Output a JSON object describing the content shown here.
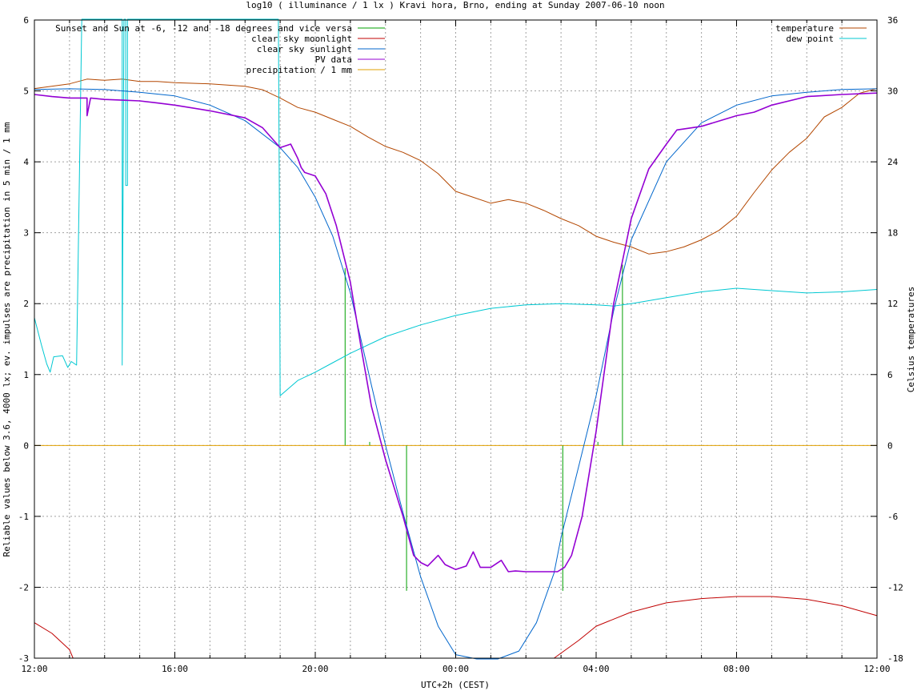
{
  "chart_data": {
    "type": "line",
    "title": "log10 ( illuminance / 1 lx ) Kravi hora, Brno, ending at Sunday 2007-06-10 noon",
    "xlabel": "UTC+2h (CEST)",
    "ylabel": "Reliable values below 3.6, 4000 lx; ev. impulses are precipitation in 5 min / 1 mm",
    "y2label": "Celsius temperatures",
    "xlim": [
      0,
      24
    ],
    "ylim": [
      -3,
      6
    ],
    "y2lim": [
      -18,
      36
    ],
    "x_tick_labels": [
      {
        "x": 0,
        "label": "12:00"
      },
      {
        "x": 4,
        "label": "16:00"
      },
      {
        "x": 8,
        "label": "20:00"
      },
      {
        "x": 12,
        "label": "00:00"
      },
      {
        "x": 16,
        "label": "04:00"
      },
      {
        "x": 20,
        "label": "08:00"
      },
      {
        "x": 24,
        "label": "12:00"
      }
    ],
    "y_ticks": [
      -3,
      -2,
      -1,
      0,
      1,
      2,
      3,
      4,
      5,
      6
    ],
    "y2_ticks": [
      -18,
      -12,
      -6,
      0,
      6,
      12,
      18,
      24,
      30,
      36
    ],
    "grid": true,
    "legend_left": [
      "Sunset and Sun at -6, -12 and -18 degrees and vice versa",
      "clear sky moonlight",
      "clear sky sunlight",
      "PV data",
      "precipitation / 1 mm"
    ],
    "legend_right": [
      "temperature",
      "dew point"
    ],
    "colors": {
      "sun_events": "#00a000",
      "moonlight": "#c00000",
      "sunlight": "#0066cc",
      "pv": "#9400d3",
      "precipitation": "#e0a000",
      "temperature": "#b34700",
      "dew_point": "#00c8d2"
    },
    "series": [
      {
        "name": "clear sky sunlight",
        "axis": "left",
        "x": [
          0,
          1,
          2,
          3,
          4,
          5,
          6,
          7,
          7.5,
          8,
          8.5,
          9,
          9.3,
          9.6,
          10,
          10.5,
          11,
          11.5,
          12,
          12.6,
          13.2,
          13.8,
          14.3,
          14.8,
          15,
          15.5,
          16,
          16.5,
          17,
          18,
          19,
          20,
          21,
          22,
          23,
          24
        ],
        "values": [
          5.02,
          5.03,
          5.02,
          4.98,
          4.93,
          4.8,
          4.58,
          4.2,
          3.92,
          3.5,
          2.95,
          2.15,
          1.5,
          0.85,
          0.0,
          -0.95,
          -1.85,
          -2.55,
          -2.95,
          -3.1,
          -3.1,
          -2.9,
          -2.5,
          -1.8,
          -1.3,
          -0.3,
          0.7,
          1.9,
          2.9,
          4.0,
          4.55,
          4.8,
          4.93,
          4.98,
          5.02,
          5.03
        ]
      },
      {
        "name": "PV data",
        "axis": "left",
        "x": [
          0,
          0.5,
          1,
          1.5,
          1.5,
          1.6,
          2,
          2.5,
          3,
          3.5,
          4,
          5,
          6,
          6.5,
          7,
          7.3,
          7.5,
          7.6,
          7.7,
          8,
          8.3,
          8.6,
          9,
          9.3,
          9.6,
          10,
          10.5,
          10.8,
          11,
          11.2,
          11.5,
          11.7,
          12,
          12.3,
          12.5,
          12.7,
          13,
          13.3,
          13.5,
          13.7,
          14,
          14.5,
          14.9,
          15.1,
          15.3,
          15.6,
          16,
          16.5,
          17,
          17.5,
          18,
          18.3,
          19,
          20,
          20.5,
          21,
          22,
          23,
          24
        ],
        "values": [
          4.95,
          4.92,
          4.9,
          4.9,
          4.65,
          4.9,
          4.88,
          4.87,
          4.86,
          4.83,
          4.8,
          4.72,
          4.62,
          4.48,
          4.2,
          4.25,
          4.05,
          3.92,
          3.85,
          3.8,
          3.55,
          3.1,
          2.3,
          1.4,
          0.55,
          -0.2,
          -1.0,
          -1.55,
          -1.65,
          -1.7,
          -1.55,
          -1.68,
          -1.75,
          -1.7,
          -1.5,
          -1.72,
          -1.72,
          -1.62,
          -1.78,
          -1.77,
          -1.78,
          -1.78,
          -1.78,
          -1.72,
          -1.55,
          -1.0,
          0.2,
          2.0,
          3.2,
          3.9,
          4.25,
          4.45,
          4.5,
          4.65,
          4.7,
          4.8,
          4.92,
          4.95,
          4.97
        ]
      },
      {
        "name": "clear sky moonlight",
        "axis": "left",
        "x": [
          0,
          0.5,
          1.0,
          1.1,
          null,
          14.8,
          15.5,
          16,
          17,
          18,
          19,
          20,
          21,
          22,
          23,
          24
        ],
        "values": [
          -2.5,
          -2.65,
          -2.88,
          -3.0,
          null,
          -3.0,
          -2.75,
          -2.55,
          -2.35,
          -2.22,
          -2.16,
          -2.13,
          -2.13,
          -2.17,
          -2.26,
          -2.4
        ]
      },
      {
        "name": "temperature",
        "axis": "right",
        "x": [
          0,
          1,
          1.5,
          2,
          2.5,
          3,
          3.5,
          4,
          5,
          6,
          6.5,
          7,
          7.5,
          8,
          8.5,
          9,
          9.5,
          10,
          10.5,
          11,
          11.5,
          12,
          12.5,
          13,
          13.5,
          14,
          14.5,
          15,
          15.5,
          16,
          16.5,
          17,
          17.5,
          18,
          18.5,
          19,
          19.5,
          20,
          20.5,
          21,
          21.5,
          22,
          22.5,
          23,
          23.5,
          24
        ],
        "values": [
          30.2,
          30.6,
          31.0,
          30.9,
          31.0,
          30.8,
          30.8,
          30.7,
          30.6,
          30.4,
          30.1,
          29.4,
          28.6,
          28.2,
          27.6,
          27.0,
          26.1,
          25.3,
          24.8,
          24.1,
          23.0,
          21.5,
          21.0,
          20.5,
          20.8,
          20.5,
          19.9,
          19.2,
          18.6,
          17.7,
          17.2,
          16.8,
          16.2,
          16.4,
          16.8,
          17.4,
          18.2,
          19.4,
          21.4,
          23.3,
          24.8,
          26.0,
          27.8,
          28.6,
          29.8,
          30.2
        ]
      },
      {
        "name": "dew point",
        "axis": "right",
        "x": [
          0,
          0.2,
          0.35,
          0.45,
          0.55,
          0.8,
          0.95,
          1.05,
          1.2,
          1.2,
          1.35,
          2.5,
          2.5,
          2.55,
          2.6,
          2.6,
          2.65,
          2.65,
          4,
          6,
          6.95,
          6.98,
          7.0,
          7.0,
          7.5,
          8.0,
          8.5,
          9.0,
          10.0,
          11.0,
          12.0,
          13.0,
          14.0,
          15.0,
          16.0,
          16.5,
          17.0,
          18.0,
          19.0,
          20.0,
          21.0,
          22.0,
          23.0,
          24.0
        ],
        "values": [
          10.8,
          8.5,
          6.9,
          6.2,
          7.5,
          7.6,
          6.6,
          7.1,
          6.8,
          6.8,
          36.5,
          36.5,
          6.8,
          36.5,
          36.5,
          22.0,
          22.0,
          36.5,
          36.5,
          36.5,
          36.5,
          20.0,
          4.2,
          4.2,
          5.5,
          6.2,
          7.0,
          7.8,
          9.2,
          10.2,
          11.0,
          11.6,
          11.9,
          12.0,
          11.9,
          11.8,
          12.0,
          12.5,
          13.0,
          13.3,
          13.1,
          12.9,
          13.0,
          13.2
        ]
      }
    ],
    "sun_event_impulses": [
      {
        "x": 8.85,
        "y": 2.5
      },
      {
        "x": 9.55,
        "y": 0.05
      },
      {
        "x": 10.6,
        "y": -2.05
      },
      {
        "x": 15.05,
        "y": -2.05
      },
      {
        "x": 16.05,
        "y": 0.05
      },
      {
        "x": 16.75,
        "y": 2.55
      }
    ],
    "precipitation_baseline": 0
  }
}
